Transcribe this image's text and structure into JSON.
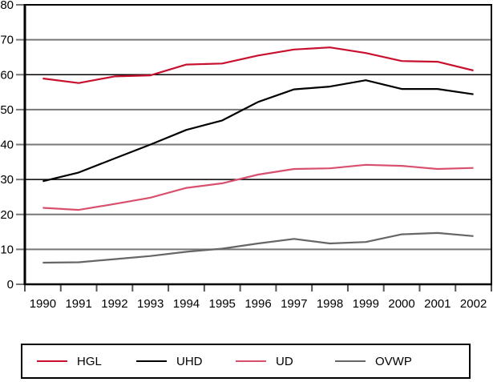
{
  "chart_data": {
    "type": "line",
    "title": "",
    "xlabel": "",
    "ylabel": "",
    "categories": [
      "1990",
      "1991",
      "1992",
      "1993",
      "1994",
      "1995",
      "1996",
      "1997",
      "1998",
      "1999",
      "2000",
      "2001",
      "2002"
    ],
    "ylim": [
      0,
      80
    ],
    "yticks": [
      0,
      10,
      20,
      30,
      40,
      50,
      60,
      70,
      80
    ],
    "ytick_labels": [
      "0",
      "10",
      "20",
      "30",
      "40",
      "50",
      "60",
      "70",
      "80"
    ],
    "grid": true,
    "legend_position": "bottom",
    "series": [
      {
        "name": "HGL",
        "color": "#c8102e",
        "values": [
          58.9,
          57.6,
          59.5,
          59.8,
          62.9,
          63.2,
          65.5,
          67.2,
          67.8,
          66.2,
          63.9,
          63.7,
          61.2
        ]
      },
      {
        "name": "UHD",
        "color": "#000000",
        "values": [
          29.5,
          32.0,
          36.0,
          40.0,
          44.2,
          46.9,
          52.2,
          55.8,
          56.6,
          58.4,
          55.9,
          55.9,
          54.4
        ]
      },
      {
        "name": "UD",
        "color": "#d9506e",
        "values": [
          21.9,
          21.3,
          23.0,
          24.8,
          27.6,
          28.9,
          31.4,
          33.0,
          33.2,
          34.2,
          33.9,
          33.0,
          33.3
        ]
      },
      {
        "name": "OVWP",
        "color": "#666666",
        "values": [
          6.2,
          6.3,
          7.2,
          8.1,
          9.3,
          10.2,
          11.7,
          13.0,
          11.7,
          12.1,
          14.3,
          14.7,
          13.8
        ]
      }
    ]
  }
}
